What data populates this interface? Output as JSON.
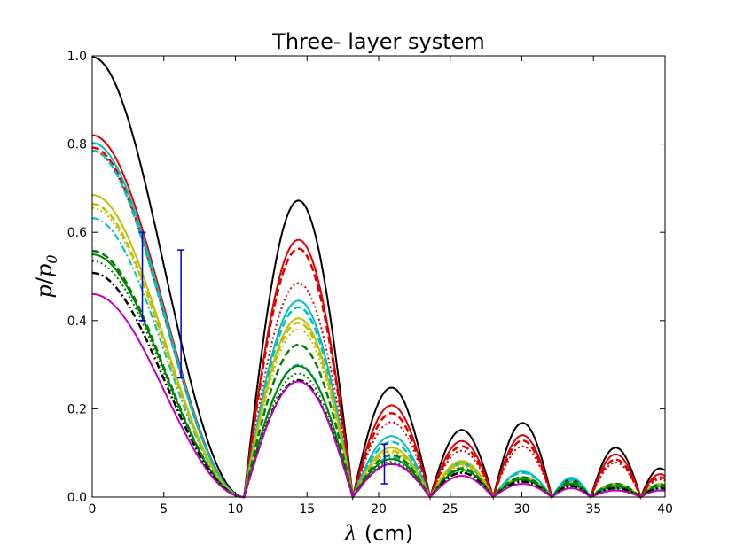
{
  "chart_data": {
    "type": "line",
    "title": "Three- layer system",
    "xlabel_symbol": "λ",
    "xlabel_unit": " (cm)",
    "ylabel_num": "p",
    "ylabel_slash": "/",
    "ylabel_den": "p",
    "ylabel_den_sub": "0",
    "xlim": [
      0,
      40
    ],
    "ylim": [
      0,
      1.0
    ],
    "xticks": [
      0,
      5,
      10,
      15,
      20,
      25,
      30,
      35,
      40
    ],
    "yticks": [
      0.0,
      0.2,
      0.4,
      0.6,
      0.8,
      1.0
    ],
    "xtick_labels": [
      "0",
      "5",
      "10",
      "15",
      "20",
      "25",
      "30",
      "35",
      "40"
    ],
    "ytick_labels": [
      "0.0",
      "0.2",
      "0.4",
      "0.6",
      "0.8",
      "1.0"
    ],
    "grid": false,
    "series": [
      {
        "color": "#000000",
        "style": "solid",
        "lw": 2,
        "plateau": 0.997,
        "peaks": [
          0.672,
          0.248,
          0.152,
          0.168,
          0.04,
          0.112,
          0.065
        ]
      },
      {
        "color": "#e00000",
        "style": "solid",
        "lw": 2,
        "plateau": 0.82,
        "peaks": [
          0.583,
          0.208,
          0.127,
          0.14,
          0.03,
          0.097,
          0.052
        ]
      },
      {
        "color": "#e00000",
        "style": "dashed",
        "lw": 2.5,
        "plateau": 0.792,
        "peaks": [
          0.563,
          0.19,
          0.115,
          0.128,
          0.028,
          0.085,
          0.045
        ]
      },
      {
        "color": "#e00000",
        "style": "dotted",
        "lw": 2,
        "plateau": 0.785,
        "peaks": [
          0.485,
          0.17,
          0.105,
          0.115,
          0.025,
          0.078,
          0.04
        ]
      },
      {
        "color": "#00bfbf",
        "style": "solid",
        "lw": 2,
        "plateau": 0.803,
        "peaks": [
          0.445,
          0.138,
          0.078,
          0.058,
          0.044,
          0.03,
          0.03
        ]
      },
      {
        "color": "#00bfbf",
        "style": "dashed",
        "lw": 2.5,
        "plateau": 0.785,
        "peaks": [
          0.43,
          0.125,
          0.075,
          0.055,
          0.04,
          0.028,
          0.028
        ]
      },
      {
        "color": "#00bfbf",
        "style": "dashdot",
        "lw": 2,
        "plateau": 0.632,
        "peaks": [
          0.3,
          0.09,
          0.055,
          0.04,
          0.035,
          0.02,
          0.02
        ]
      },
      {
        "color": "#bfbf00",
        "style": "solid",
        "lw": 2,
        "plateau": 0.685,
        "peaks": [
          0.405,
          0.112,
          0.082,
          0.045,
          0.03,
          0.03,
          0.03
        ]
      },
      {
        "color": "#bfbf00",
        "style": "dashed",
        "lw": 2.5,
        "plateau": 0.664,
        "peaks": [
          0.395,
          0.105,
          0.075,
          0.042,
          0.028,
          0.028,
          0.028
        ]
      },
      {
        "color": "#bfbf00",
        "style": "dotted",
        "lw": 2,
        "plateau": 0.655,
        "peaks": [
          0.38,
          0.1,
          0.07,
          0.04,
          0.025,
          0.025,
          0.025
        ]
      },
      {
        "color": "#008000",
        "style": "dashed",
        "lw": 2.5,
        "plateau": 0.558,
        "peaks": [
          0.345,
          0.095,
          0.065,
          0.045,
          0.035,
          0.03,
          0.028
        ]
      },
      {
        "color": "#008000",
        "style": "solid",
        "lw": 2,
        "plateau": 0.55,
        "peaks": [
          0.297,
          0.086,
          0.062,
          0.04,
          0.03,
          0.025,
          0.025
        ]
      },
      {
        "color": "#008000",
        "style": "dotted",
        "lw": 2,
        "plateau": 0.535,
        "peaks": [
          0.28,
          0.08,
          0.058,
          0.038,
          0.028,
          0.022,
          0.022
        ]
      },
      {
        "color": "#000000",
        "style": "dashdot",
        "lw": 2.5,
        "plateau": 0.508,
        "peaks": [
          0.265,
          0.075,
          0.055,
          0.035,
          0.025,
          0.02,
          0.02
        ]
      },
      {
        "color": "#bf00bf",
        "style": "solid",
        "lw": 2,
        "plateau": 0.46,
        "peaks": [
          0.262,
          0.075,
          0.048,
          0.03,
          0.02,
          0.015,
          0.015
        ]
      }
    ],
    "zeros": [
      10.6,
      18.2,
      23.6,
      28.0,
      32.1,
      34.8,
      38.3
    ],
    "peak_x": [
      14.5,
      20.4,
      26.3,
      29.6,
      33.4,
      36.7,
      39.3
    ],
    "error_bars": [
      {
        "x": 3.5,
        "y_low": 0.4,
        "y_high": 0.6,
        "color": "#0000cc"
      },
      {
        "x": 6.2,
        "y_low": 0.27,
        "y_high": 0.56,
        "color": "#0000cc"
      },
      {
        "x": 20.4,
        "y_low": 0.03,
        "y_high": 0.12,
        "color": "#0000cc"
      }
    ]
  }
}
